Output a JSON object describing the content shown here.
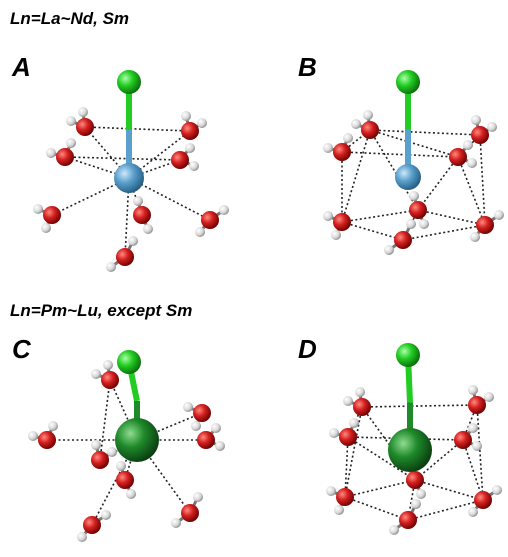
{
  "sections": [
    {
      "title": "Ln=La~Nd, Sm",
      "panels": [
        "A",
        "B"
      ]
    },
    {
      "title": "Ln=Pm~Lu, except Sm",
      "panels": [
        "C",
        "D"
      ]
    }
  ]
}
